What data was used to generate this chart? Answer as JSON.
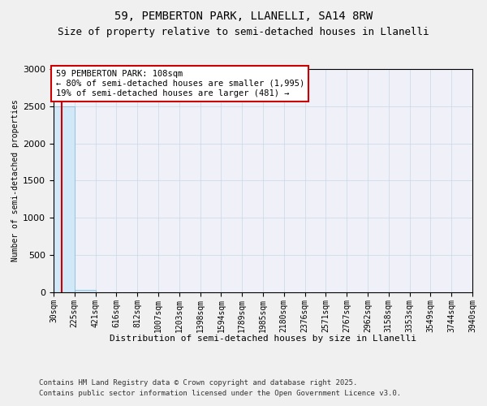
{
  "title": "59, PEMBERTON PARK, LLANELLI, SA14 8RW",
  "subtitle": "Size of property relative to semi-detached houses in Llanelli",
  "xlabel": "Distribution of semi-detached houses by size in Llanelli",
  "ylabel": "Number of semi-detached properties",
  "footnote1": "Contains HM Land Registry data © Crown copyright and database right 2025.",
  "footnote2": "Contains public sector information licensed under the Open Government Licence v3.0.",
  "annotation_title": "59 PEMBERTON PARK: 108sqm",
  "annotation_line1": "← 80% of semi-detached houses are smaller (1,995)",
  "annotation_line2": "19% of semi-detached houses are larger (481) →",
  "property_size": 108,
  "bin_edges": [
    30,
    225,
    421,
    616,
    812,
    1007,
    1203,
    1398,
    1594,
    1789,
    1985,
    2180,
    2376,
    2571,
    2767,
    2962,
    3158,
    3353,
    3549,
    3744,
    3940
  ],
  "bar_heights": [
    2500,
    30,
    5,
    2,
    1,
    1,
    0,
    0,
    0,
    0,
    0,
    0,
    0,
    0,
    0,
    0,
    0,
    0,
    0,
    0
  ],
  "bar_color": "#d0e8f8",
  "bar_edge_color": "#7ab4d8",
  "vline_color": "#cc0000",
  "ylim": [
    0,
    3000
  ],
  "yticks": [
    0,
    500,
    1000,
    1500,
    2000,
    2500,
    3000
  ],
  "background_color": "#f0f0f0",
  "plot_background_color": "#f0f0f8",
  "title_fontsize": 10,
  "subtitle_fontsize": 9,
  "xlabel_fontsize": 8,
  "ylabel_fontsize": 7,
  "tick_fontsize": 7,
  "annotation_fontsize": 7.5,
  "footnote_fontsize": 6.5
}
